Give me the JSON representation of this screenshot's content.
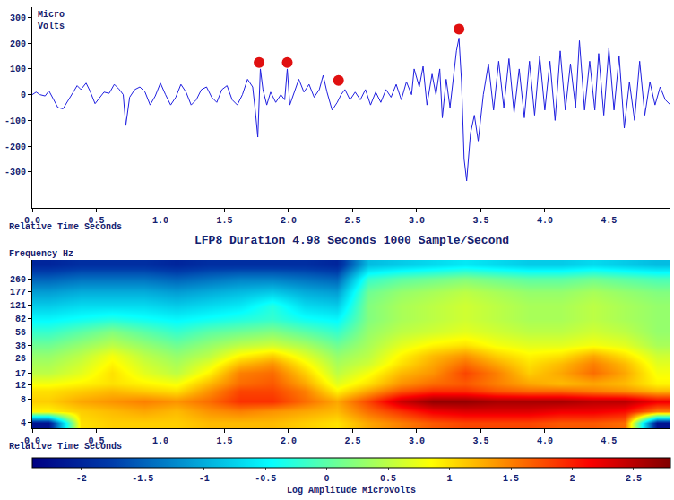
{
  "chart_data": [
    {
      "type": "line",
      "y_label": "Micro\nVolts",
      "x_label": "Relative Time Seconds",
      "grid": false,
      "xlim": [
        0,
        4.98
      ],
      "xticks": [
        {
          "value": 0,
          "label": "0.0"
        },
        {
          "value": 0.5,
          "label": "0.5"
        },
        {
          "value": 1,
          "label": "1.0"
        },
        {
          "value": 1.5,
          "label": "1.5"
        },
        {
          "value": 2,
          "label": "2.0"
        },
        {
          "value": 2.5,
          "label": "2.5"
        },
        {
          "value": 3,
          "label": "3.0"
        },
        {
          "value": 3.5,
          "label": "3.5"
        },
        {
          "value": 4,
          "label": "4.0"
        },
        {
          "value": 4.5,
          "label": "4.5"
        }
      ],
      "ylim": [
        -440,
        340
      ],
      "yticks": [
        -300,
        -200,
        -100,
        0,
        100,
        200,
        300
      ],
      "series": [
        {
          "type": "line",
          "color": "#1f1fe0",
          "x": [
            0,
            0.03,
            0.06,
            0.1,
            0.13,
            0.17,
            0.2,
            0.24,
            0.28,
            0.32,
            0.35,
            0.38,
            0.42,
            0.45,
            0.49,
            0.52,
            0.56,
            0.6,
            0.64,
            0.68,
            0.71,
            0.73,
            0.76,
            0.8,
            0.84,
            0.88,
            0.92,
            0.96,
            1.0,
            1.04,
            1.08,
            1.12,
            1.16,
            1.2,
            1.24,
            1.28,
            1.32,
            1.36,
            1.4,
            1.44,
            1.48,
            1.52,
            1.56,
            1.6,
            1.64,
            1.68,
            1.72,
            1.74,
            1.76,
            1.78,
            1.8,
            1.83,
            1.86,
            1.9,
            1.94,
            1.97,
            1.99,
            2.01,
            2.04,
            2.08,
            2.12,
            2.16,
            2.2,
            2.24,
            2.27,
            2.3,
            2.34,
            2.38,
            2.41,
            2.44,
            2.48,
            2.52,
            2.56,
            2.6,
            2.64,
            2.68,
            2.72,
            2.76,
            2.8,
            2.84,
            2.88,
            2.92,
            2.96,
            2.98,
            3.02,
            3.05,
            3.08,
            3.12,
            3.15,
            3.18,
            3.2,
            3.23,
            3.26,
            3.29,
            3.31,
            3.33,
            3.35,
            3.37,
            3.39,
            3.42,
            3.45,
            3.48,
            3.52,
            3.56,
            3.6,
            3.64,
            3.68,
            3.72,
            3.76,
            3.8,
            3.84,
            3.88,
            3.92,
            3.96,
            4.0,
            4.04,
            4.08,
            4.12,
            4.16,
            4.2,
            4.24,
            4.27,
            4.31,
            4.35,
            4.39,
            4.42,
            4.46,
            4.5,
            4.54,
            4.58,
            4.62,
            4.66,
            4.7,
            4.74,
            4.78,
            4.82,
            4.86,
            4.9,
            4.94,
            4.98
          ],
          "values": [
            0,
            10,
            0,
            -5,
            15,
            -20,
            -50,
            -55,
            -20,
            10,
            35,
            20,
            45,
            15,
            -35,
            -15,
            10,
            5,
            40,
            20,
            0,
            -120,
            -10,
            20,
            30,
            10,
            -40,
            -5,
            45,
            0,
            -40,
            -10,
            40,
            10,
            -40,
            -20,
            20,
            30,
            -10,
            -30,
            20,
            35,
            -20,
            -40,
            0,
            60,
            30,
            -60,
            -165,
            100,
            20,
            -40,
            10,
            -30,
            0,
            -20,
            100,
            -40,
            0,
            60,
            10,
            40,
            -10,
            20,
            75,
            10,
            -60,
            -30,
            0,
            20,
            -20,
            10,
            -20,
            20,
            -40,
            10,
            -30,
            20,
            -10,
            40,
            -20,
            50,
            0,
            100,
            30,
            110,
            -40,
            80,
            0,
            100,
            -90,
            60,
            -50,
            90,
            170,
            220,
            50,
            -250,
            -335,
            -150,
            -80,
            -180,
            0,
            120,
            -60,
            130,
            -50,
            140,
            -70,
            100,
            -90,
            130,
            -80,
            150,
            -60,
            130,
            -100,
            170,
            -60,
            120,
            -50,
            210,
            -60,
            130,
            -60,
            160,
            -80,
            180,
            -60,
            150,
            -130,
            50,
            -100,
            130,
            -80,
            50,
            -40,
            30,
            -20,
            -40
          ]
        },
        {
          "type": "scatter",
          "marker": "circle",
          "color": "#e01010",
          "x": [
            1.77,
            1.99,
            2.39,
            3.33
          ],
          "values": [
            125,
            125,
            55,
            255
          ]
        }
      ]
    },
    {
      "type": "heatmap",
      "title": "LFP8 Duration 4.98 Seconds 1000 Sample/Second",
      "y_label": "Frequency Hz",
      "x_label": "Relative Time Seconds",
      "log": "y",
      "grid": false,
      "color": "Jet",
      "xlim": [
        0,
        4.98
      ],
      "xticks": [
        {
          "value": 0,
          "label": "0.0"
        },
        {
          "value": 0.5,
          "label": "0.5"
        },
        {
          "value": 1,
          "label": "1.0"
        },
        {
          "value": 1.5,
          "label": "1.5"
        },
        {
          "value": 2,
          "label": "2.0"
        },
        {
          "value": 2.5,
          "label": "2.5"
        },
        {
          "value": 3,
          "label": "3.0"
        },
        {
          "value": 3.5,
          "label": "3.5"
        },
        {
          "value": 4,
          "label": "4.0"
        },
        {
          "value": 4.5,
          "label": "4.5"
        }
      ],
      "ylim": [
        3.4,
        450
      ],
      "yticks": [
        4,
        8,
        12,
        17,
        26,
        38,
        56,
        82,
        121,
        177,
        260
      ],
      "x": [
        0.125,
        0.375,
        0.625,
        0.875,
        1.125,
        1.375,
        1.625,
        1.875,
        2.125,
        2.375,
        2.625,
        2.875,
        3.125,
        3.375,
        3.625,
        3.875,
        4.125,
        4.375,
        4.625,
        4.875
      ],
      "y": [
        4,
        5.5,
        7.5,
        10,
        12.5,
        17,
        22,
        28,
        38,
        56,
        82,
        121,
        177,
        260,
        400
      ],
      "cells": [
        [
          -2.2,
          1.0,
          1.1,
          1.1,
          1.1,
          1.2,
          1.2,
          1.2,
          1.1,
          1.0,
          1.3,
          1.5,
          1.7,
          1.8,
          1.8,
          1.8,
          1.7,
          1.7,
          1.6,
          -2.2
        ],
        [
          0.9,
          1.1,
          1.2,
          1.3,
          1.2,
          1.4,
          1.5,
          1.4,
          1.3,
          1.2,
          1.6,
          1.9,
          2.2,
          2.3,
          2.3,
          2.3,
          2.2,
          2.2,
          2.1,
          1.5
        ],
        [
          1.1,
          1.3,
          1.4,
          1.5,
          1.4,
          1.6,
          1.9,
          1.9,
          1.6,
          1.3,
          1.8,
          2.4,
          2.7,
          2.7,
          2.6,
          2.6,
          2.6,
          2.5,
          2.5,
          2.2
        ],
        [
          1.0,
          1.1,
          1.2,
          1.1,
          1.0,
          1.4,
          1.8,
          1.8,
          1.5,
          0.9,
          1.3,
          1.7,
          1.9,
          1.9,
          1.7,
          1.6,
          1.6,
          1.5,
          1.4,
          1.2
        ],
        [
          0.8,
          0.9,
          1.0,
          0.9,
          0.8,
          1.2,
          1.6,
          1.7,
          1.3,
          0.7,
          1.0,
          1.4,
          1.6,
          1.7,
          1.5,
          1.3,
          1.2,
          1.3,
          1.2,
          0.9
        ],
        [
          0.5,
          0.7,
          1.0,
          0.7,
          0.5,
          0.9,
          1.5,
          1.6,
          1.1,
          0.5,
          0.8,
          1.2,
          1.4,
          1.8,
          1.5,
          1.1,
          1.3,
          1.6,
          1.3,
          0.8
        ],
        [
          0.4,
          0.6,
          0.9,
          0.6,
          0.4,
          0.7,
          1.2,
          1.4,
          0.9,
          0.4,
          0.6,
          1.0,
          1.3,
          1.6,
          1.3,
          1.0,
          1.2,
          1.5,
          1.2,
          0.7
        ],
        [
          0.3,
          0.5,
          0.8,
          0.5,
          0.3,
          0.5,
          0.9,
          1.1,
          0.7,
          0.3,
          0.5,
          0.9,
          1.2,
          1.4,
          1.1,
          0.9,
          1.0,
          1.3,
          1.0,
          0.6
        ],
        [
          0.1,
          0.3,
          0.5,
          0.3,
          0.1,
          0.3,
          0.5,
          0.6,
          0.4,
          0.1,
          0.4,
          0.7,
          0.9,
          1.0,
          0.8,
          0.7,
          0.7,
          0.8,
          0.7,
          0.4
        ],
        [
          -0.2,
          0.0,
          0.2,
          0.0,
          -0.2,
          0.0,
          0.1,
          0.2,
          0.0,
          -0.2,
          0.3,
          0.5,
          0.6,
          0.7,
          0.6,
          0.5,
          0.5,
          0.6,
          0.5,
          0.3
        ],
        [
          -0.5,
          -0.4,
          -0.3,
          -0.4,
          -0.5,
          -0.4,
          -0.3,
          -0.2,
          -0.4,
          -0.5,
          0.2,
          0.4,
          0.5,
          0.6,
          0.5,
          0.4,
          0.4,
          0.5,
          0.4,
          0.3
        ],
        [
          -0.8,
          -0.7,
          -0.7,
          -0.7,
          -0.8,
          -0.7,
          -0.6,
          -0.3,
          -0.7,
          -0.8,
          0.2,
          0.4,
          0.5,
          0.6,
          0.5,
          0.4,
          0.4,
          0.5,
          0.4,
          0.3
        ],
        [
          -1.1,
          -1.0,
          -1.0,
          -1.0,
          -1.1,
          -1.0,
          -0.9,
          -0.8,
          -1.0,
          -1.1,
          0.1,
          0.3,
          0.4,
          0.5,
          0.4,
          0.3,
          0.3,
          0.4,
          0.3,
          0.2
        ],
        [
          -1.5,
          -1.4,
          -1.4,
          -1.4,
          -1.5,
          -1.4,
          -1.3,
          -1.3,
          -1.4,
          -1.5,
          -0.2,
          0.0,
          0.1,
          0.2,
          0.1,
          0.0,
          0.0,
          0.1,
          0.0,
          -0.1
        ],
        [
          -2.0,
          -1.9,
          -1.9,
          -1.9,
          -2.0,
          -1.9,
          -1.9,
          -1.9,
          -1.9,
          -2.0,
          -0.9,
          -0.8,
          -0.7,
          -0.6,
          -0.7,
          -0.8,
          -0.8,
          -0.7,
          -0.8,
          -0.9
        ]
      ],
      "colorbar": {
        "title": "Log Amplitude Microvolts",
        "range": [
          -2.4,
          2.8
        ],
        "ticks": [
          -2,
          -1.5,
          -1,
          -0.5,
          0,
          0.5,
          1,
          1.5,
          2,
          2.5
        ]
      }
    }
  ]
}
